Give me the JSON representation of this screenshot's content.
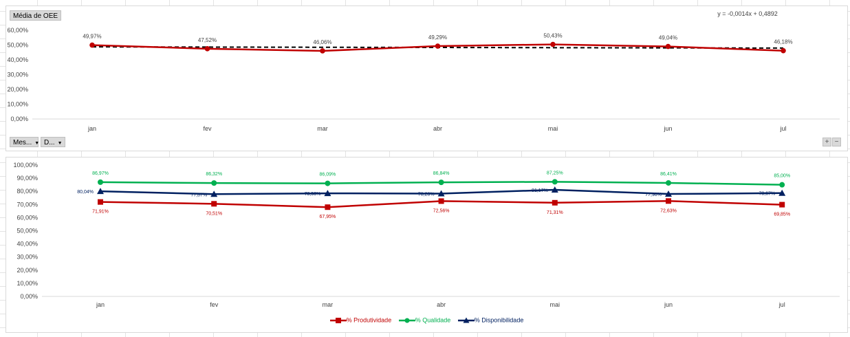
{
  "chart_data": [
    {
      "type": "line",
      "title": "Média de OEE",
      "categories": [
        "jan",
        "fev",
        "mar",
        "abr",
        "mai",
        "jun",
        "jul"
      ],
      "values": [
        49.97,
        47.52,
        46.06,
        49.29,
        50.43,
        49.04,
        46.18
      ],
      "data_labels": [
        "49,97%",
        "47,52%",
        "46,06%",
        "49,29%",
        "50,43%",
        "49,04%",
        "46,18%"
      ],
      "trendline": {
        "type": "linear",
        "equation": "y = -0,0014x + 0,4892",
        "slope": -0.0014,
        "intercept": 0.4892
      },
      "yticks": [
        "0,00%",
        "10,00%",
        "20,00%",
        "30,00%",
        "40,00%",
        "50,00%",
        "60,00%"
      ],
      "ylim": [
        0,
        60
      ],
      "grid": false,
      "color": "#c00000"
    },
    {
      "type": "line",
      "categories": [
        "jan",
        "fev",
        "mar",
        "abr",
        "mai",
        "jun",
        "jul"
      ],
      "series": [
        {
          "name": "% Produtividade",
          "color": "#c00000",
          "marker": "square",
          "values": [
            71.91,
            70.51,
            67.95,
            72.56,
            71.31,
            72.63,
            69.85
          ],
          "labels": [
            "71,91%",
            "70,51%",
            "67,95%",
            "72,56%",
            "71,31%",
            "72,63%",
            "69,85%"
          ]
        },
        {
          "name": "% Qualidade",
          "color": "#00b050",
          "marker": "circle",
          "values": [
            86.97,
            86.32,
            86.09,
            86.84,
            87.25,
            86.41,
            85.0
          ],
          "labels": [
            "86,97%",
            "86,32%",
            "86,09%",
            "86,84%",
            "87,25%",
            "86,41%",
            "85,00%"
          ]
        },
        {
          "name": "% Disponibilidade",
          "color": "#002060",
          "marker": "triangle",
          "values": [
            80.04,
            77.87,
            78.5,
            78.28,
            81.17,
            77.98,
            78.67
          ],
          "labels": [
            "80,04%",
            "77,87%",
            "78,50%",
            "78,28%",
            "81,17%",
            "77,98%",
            "78,67%"
          ]
        }
      ],
      "yticks": [
        "0,00%",
        "10,00%",
        "20,00%",
        "30,00%",
        "40,00%",
        "50,00%",
        "60,00%",
        "70,00%",
        "80,00%",
        "90,00%",
        "100,00%"
      ],
      "ylim": [
        0,
        100
      ],
      "grid": false,
      "legend": "bottom"
    }
  ],
  "controls": {
    "oee_field": "Média de OEE",
    "filter_month": "Mes...",
    "filter_d": "D...",
    "zoom_in": "+",
    "zoom_out": "−"
  }
}
